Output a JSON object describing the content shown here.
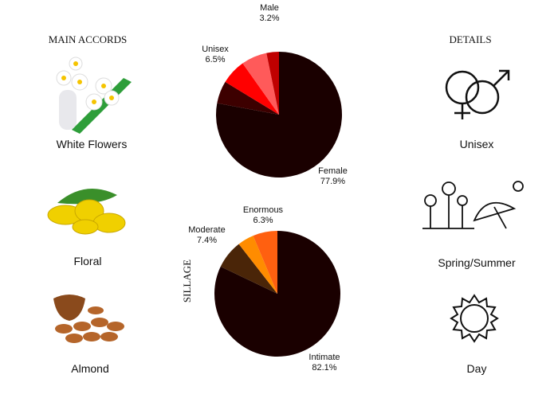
{
  "main_accords": {
    "title": "MAIN ACCORDS",
    "items": [
      {
        "label": "White Flowers",
        "icon": "white-flowers-image"
      },
      {
        "label": "Floral",
        "icon": "ylang-flower-image"
      },
      {
        "label": "Almond",
        "icon": "almond-bowl-image"
      }
    ]
  },
  "details": {
    "title": "DETAILS",
    "items": [
      {
        "label": "Unisex",
        "icon": "gender-symbols-icon"
      },
      {
        "label": "Spring/Summer",
        "icon": "spring-summer-icon"
      },
      {
        "label": "Day",
        "icon": "sun-icon"
      }
    ]
  },
  "chart_data": [
    {
      "type": "pie",
      "name": "gender",
      "slices": [
        {
          "label": "Female",
          "value": 77.9,
          "display": "77.9%",
          "color": "#1a0000"
        },
        {
          "label": "",
          "value": 5.8,
          "color": "#3d0000"
        },
        {
          "label": "Unisex",
          "value": 6.5,
          "display": "6.5%",
          "color": "#ff0000"
        },
        {
          "label": "",
          "value": 6.6,
          "color": "#ff5a5a"
        },
        {
          "label": "Male",
          "value": 3.2,
          "display": "3.2%",
          "color": "#c00000"
        }
      ]
    },
    {
      "type": "pie",
      "title": "SILLAGE",
      "slices": [
        {
          "label": "Intimate",
          "value": 82.1,
          "display": "82.1%",
          "color": "#1a0000"
        },
        {
          "label": "Moderate",
          "value": 7.4,
          "display": "7.4%",
          "color": "#4a2508"
        },
        {
          "label": "",
          "value": 4.2,
          "color": "#ff8c00"
        },
        {
          "label": "Enormous",
          "value": 6.3,
          "display": "6.3%",
          "color": "#ff6010"
        }
      ]
    }
  ]
}
